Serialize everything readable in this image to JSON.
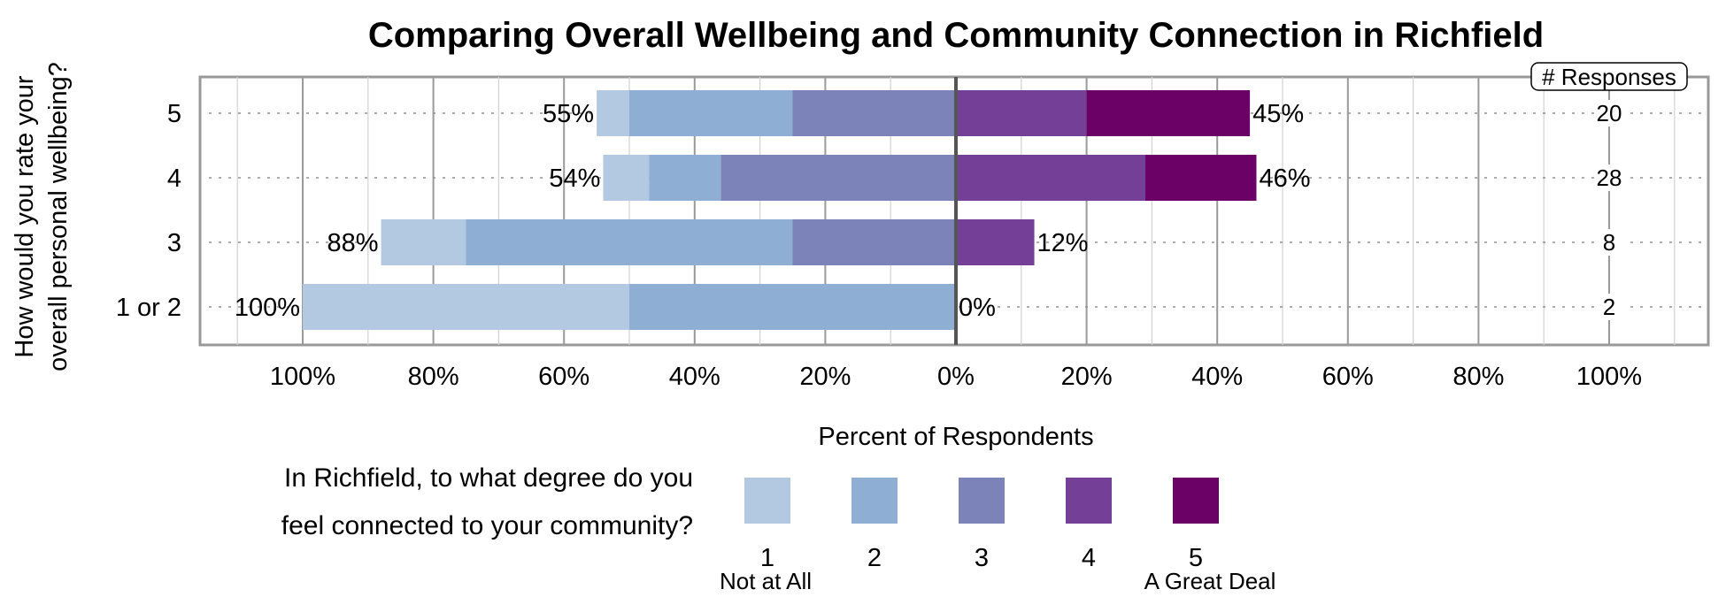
{
  "chart_data": {
    "type": "bar",
    "orientation": "horizontal",
    "stacked": "diverging",
    "title": "Comparing Overall Wellbeing and Community Connection in Richfield",
    "ylabel_lines": [
      "How would you rate your",
      "overall personal wellbeing?"
    ],
    "xlabel": "Percent of Respondents",
    "x_tick_labels": [
      "100%",
      "80%",
      "60%",
      "40%",
      "20%",
      "0%",
      "20%",
      "40%",
      "60%",
      "80%",
      "100%"
    ],
    "xlim": [
      -100,
      100
    ],
    "grid": true,
    "categories": [
      "5",
      "4",
      "3",
      "1 or 2"
    ],
    "series": [
      {
        "name": "1",
        "color": "#b3c8e1",
        "values": [
          -5,
          -7,
          -13,
          -50
        ]
      },
      {
        "name": "2",
        "color": "#8eaed3",
        "values": [
          -25,
          -11,
          -50,
          -50
        ]
      },
      {
        "name": "3",
        "color": "#7b83b9",
        "values": [
          -25,
          -36,
          -25,
          0
        ]
      },
      {
        "name": "4",
        "color": "#743f96",
        "values": [
          20,
          29,
          12,
          0
        ]
      },
      {
        "name": "5",
        "color": "#6b0066",
        "values": [
          25,
          17,
          0,
          0
        ]
      }
    ],
    "left_totals": [
      "55%",
      "54%",
      "88%",
      "100%"
    ],
    "right_totals": [
      "45%",
      "46%",
      "12%",
      "0%"
    ],
    "responses_header": "# Responses",
    "responses": [
      "20",
      "28",
      "8",
      "2"
    ],
    "legend": {
      "question_lines": [
        "In Richfield, to what degree do you",
        "feel connected to your community?"
      ],
      "low_anchor": "Not at All",
      "high_anchor": "A Great Deal"
    }
  }
}
